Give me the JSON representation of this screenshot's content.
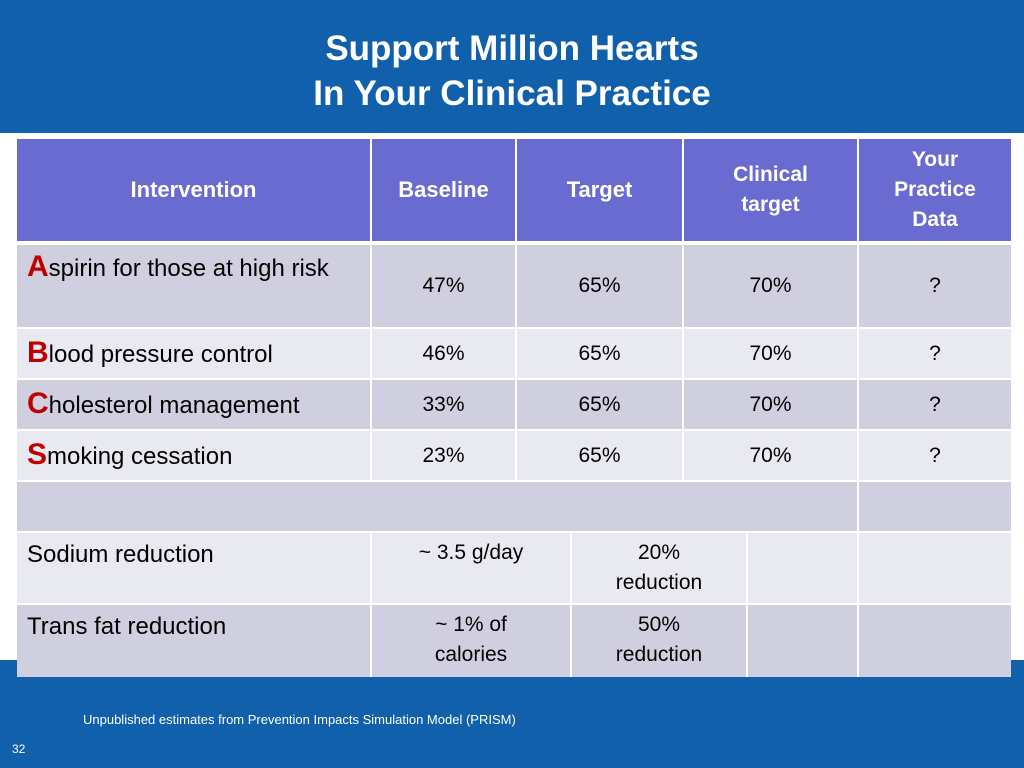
{
  "slide": {
    "title_line1": "Support Million Hearts",
    "title_line2": "In Your Clinical Practice",
    "footnote": "Unpublished estimates from Prevention Impacts Simulation Model (PRISM)",
    "slide_number": "32"
  },
  "table": {
    "headers": {
      "intervention": "Intervention",
      "baseline": "Baseline",
      "target": "Target",
      "clinical_target": "Clinical target",
      "your_practice_data": "Your Practice Data"
    },
    "abcs_rows": [
      {
        "letter": "A",
        "rest": "spirin for those at high risk",
        "baseline": "47%",
        "target": "65%",
        "clinical": "70%",
        "practice": "?"
      },
      {
        "letter": "B",
        "rest": "lood pressure control",
        "baseline": "46%",
        "target": "65%",
        "clinical": "70%",
        "practice": "?"
      },
      {
        "letter": "C",
        "rest": "holesterol management",
        "baseline": "33%",
        "target": "65%",
        "clinical": "70%",
        "practice": "?"
      },
      {
        "letter": "S",
        "rest": "moking cessation",
        "baseline": "23%",
        "target": "65%",
        "clinical": "70%",
        "practice": "?"
      }
    ],
    "other_rows": [
      {
        "intervention": "Sodium reduction",
        "baseline": "~ 3.5 g/day",
        "target": "20% reduction"
      },
      {
        "intervention": "Trans fat reduction",
        "baseline": "~ 1% of calories",
        "target": "50% reduction"
      }
    ]
  },
  "colors": {
    "band_blue": "#1160AC",
    "header_purple": "#6A6BD0",
    "row_dark": "#CFCFE0",
    "row_light": "#E9E9F2",
    "letter_red": "#C00000"
  }
}
